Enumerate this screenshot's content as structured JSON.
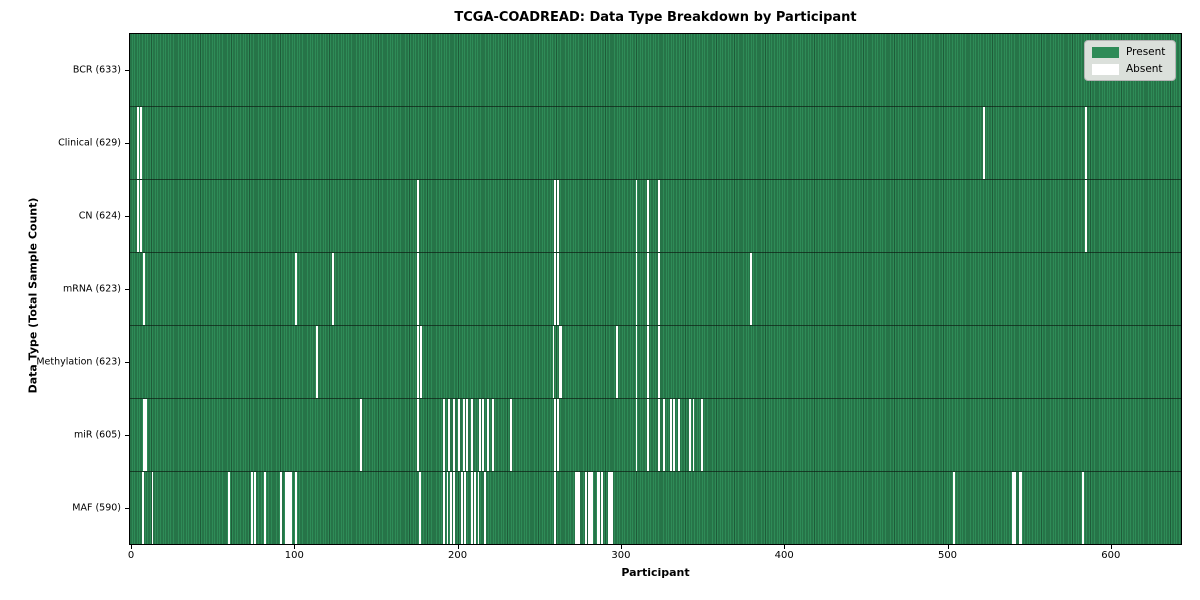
{
  "title": "TCGA-COADREAD: Data Type Breakdown by Participant",
  "chart_data": {
    "type": "heatmap",
    "title": "TCGA-COADREAD: Data Type Breakdown by Participant",
    "xlabel": "Participant",
    "ylabel": "Data Type (Total Sample Count)",
    "x_ticks": [
      0,
      100,
      200,
      300,
      400,
      500,
      600
    ],
    "x_range": [
      -1.2,
      643.7
    ],
    "total_participants": 633,
    "grid": false,
    "legend_position": "upper right",
    "legend": [
      {
        "label": "Present",
        "color": "#2e8b57"
      },
      {
        "label": "Absent",
        "color": "#ffffff"
      }
    ],
    "colors": {
      "present_fill": "#2e8b57",
      "bar_edge": "#1e5c39",
      "absent_fill": "#ffffff",
      "legend_bg": "#dbe0db"
    },
    "rows": [
      {
        "label": "BCR (633)",
        "data_type": "BCR",
        "present_count": 633,
        "absent_participants": []
      },
      {
        "label": "Clinical (629)",
        "data_type": "Clinical",
        "present_count": 629,
        "absent_participants": [
          3,
          5,
          522,
          585
        ]
      },
      {
        "label": "CN (624)",
        "data_type": "CN",
        "present_count": 624,
        "absent_participants": [
          3,
          5,
          175,
          259,
          261,
          309,
          316,
          323,
          585
        ]
      },
      {
        "label": "mRNA (623)",
        "data_type": "mRNA",
        "present_count": 623,
        "absent_participants": [
          7,
          100,
          123,
          175,
          259,
          261,
          309,
          316,
          323,
          379
        ]
      },
      {
        "label": "Methylation (623)",
        "data_type": "Methylation",
        "present_count": 623,
        "absent_participants": [
          113,
          175,
          177,
          258,
          262,
          263,
          297,
          309,
          316,
          323
        ]
      },
      {
        "label": "miR (605)",
        "data_type": "miR",
        "present_count": 605,
        "absent_participants": [
          7,
          8,
          140,
          175,
          191,
          194,
          197,
          200,
          203,
          205,
          208,
          213,
          215,
          218,
          221,
          232,
          259,
          261,
          309,
          316,
          323,
          326,
          330,
          332,
          335,
          342,
          344,
          349
        ]
      },
      {
        "label": "MAF (590)",
        "data_type": "MAF",
        "present_count": 590,
        "absent_participants": [
          6,
          12,
          59,
          73,
          75,
          81,
          91,
          94,
          95,
          96,
          97,
          100,
          176,
          191,
          193,
          195,
          197,
          202,
          204,
          208,
          210,
          212,
          216,
          259,
          272,
          273,
          274,
          278,
          280,
          281,
          282,
          285,
          286,
          288,
          292,
          293,
          294,
          504,
          540,
          541,
          544,
          545,
          583
        ]
      }
    ]
  }
}
